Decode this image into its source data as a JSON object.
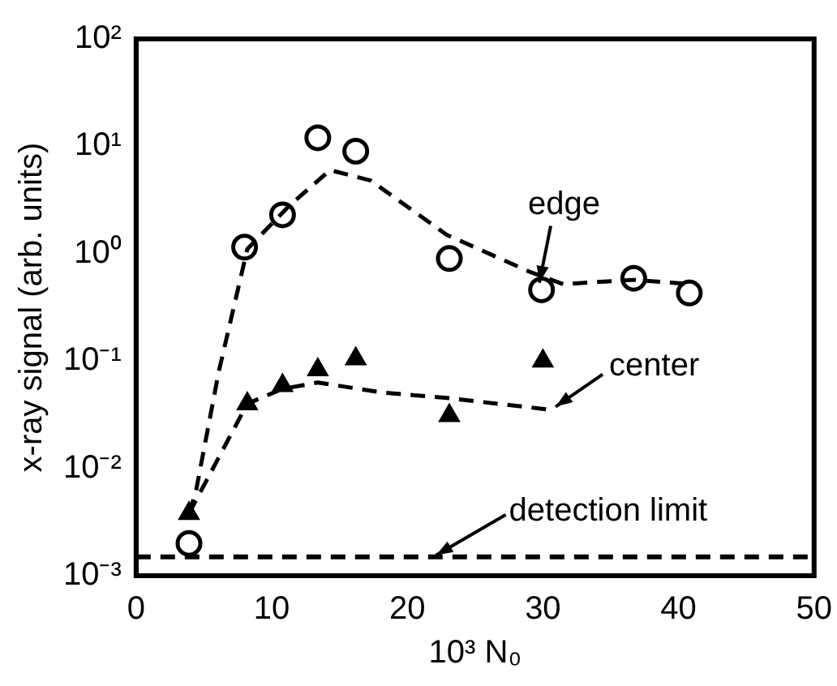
{
  "chart_data": {
    "type": "scatter",
    "xlabel": "10³ N₀",
    "ylabel": "x-ray signal (arb. units)",
    "log": "y",
    "xlim": [
      0,
      50
    ],
    "xticks": [
      0,
      10,
      20,
      30,
      40,
      50
    ],
    "ylim": [
      0.001,
      100
    ],
    "yticks": [
      {
        "value": 0.001,
        "label": "10⁻³"
      },
      {
        "value": 0.01,
        "label": "10⁻²"
      },
      {
        "value": 0.1,
        "label": "10⁻¹"
      },
      {
        "value": 1,
        "label": "10⁰"
      },
      {
        "value": 10,
        "label": "10¹"
      },
      {
        "value": 100,
        "label": "10²"
      }
    ],
    "grid": false,
    "legend": false,
    "series": [
      {
        "type": "scatter",
        "marker": "circle",
        "color": "#000000",
        "x": [
          3.9,
          8.0,
          10.8,
          13.4,
          16.2,
          23.1,
          29.9,
          36.7,
          40.8
        ],
        "values": [
          0.002,
          1.15,
          2.3,
          12,
          9,
          0.9,
          0.46,
          0.59,
          0.43
        ]
      },
      {
        "type": "scatter",
        "marker": "triangle",
        "color": "#000000",
        "x": [
          3.9,
          8.2,
          10.8,
          13.4,
          16.2,
          23.1,
          30
        ],
        "values": [
          0.0038,
          0.04,
          0.059,
          0.083,
          0.105,
          0.031,
          0.1
        ]
      },
      {
        "type": "line",
        "line_style": "dashed",
        "marker": "none",
        "color": "#000000",
        "x": [
          3.9,
          4.4,
          6.1,
          8.2,
          11.3,
          14.3,
          17.3,
          22.9,
          29,
          31.5,
          36.7,
          41
        ],
        "values": [
          0.0038,
          0.006,
          0.08,
          1.1,
          2.8,
          6,
          4.8,
          1.5,
          0.68,
          0.52,
          0.57,
          0.52
        ]
      },
      {
        "type": "line",
        "line_style": "dashed",
        "marker": "none",
        "color": "#000000",
        "x": [
          3.9,
          8.2,
          10.8,
          13.4,
          18.1,
          23.1,
          30.7
        ],
        "values": [
          0.0038,
          0.04,
          0.055,
          0.063,
          0.051,
          0.045,
          0.035
        ]
      }
    ],
    "ref_lines": [
      {
        "axis": "y",
        "value": 0.0015,
        "label": "detection limit",
        "color": "#000000",
        "line_style": "dashed"
      }
    ],
    "annotations": [
      {
        "text": "edge",
        "x": 29.5,
        "y": 0.5
      },
      {
        "text": "center",
        "x": 30.7,
        "y": 0.035
      }
    ]
  }
}
